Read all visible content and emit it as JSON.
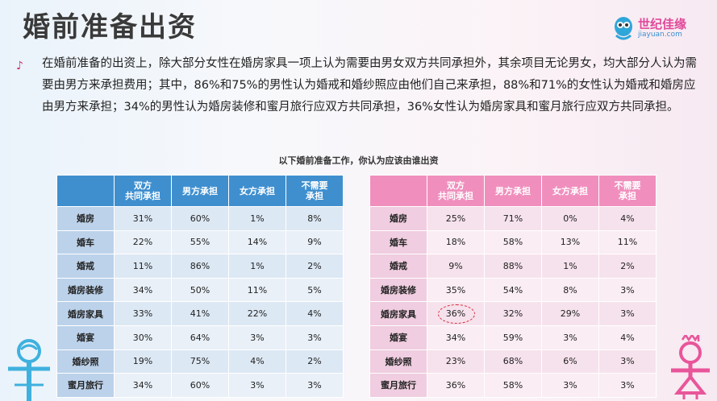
{
  "title": "婚前准备出资",
  "logo": {
    "cn": "世纪佳缘",
    "en": "jiayuan.com"
  },
  "bullet": "♪",
  "paragraph": "在婚前准备的出资上，除大部分女性在婚房家具一项上认为需要由男女双方共同承担外，其余项目无论男女，均大部分人认为需要由男方来承担费用；其中，86%和75%的男性认为婚戒和婚纱照应由他们自己来承担，88%和71%的女性认为婚戒和婚房应由男方来承担；34%的男性认为婚房装修和蜜月旅行应双方共同承担，36%女性认为婚房家具和蜜月旅行应双方共同承担。",
  "caption": "以下婚前准备工作，你认为应该由谁出资",
  "columns": [
    "",
    "双方\n共同承担",
    "男方承担",
    "女方承担",
    "不需要\n承担"
  ],
  "male_table": [
    [
      "婚房",
      "31%",
      "60%",
      "1%",
      "8%"
    ],
    [
      "婚车",
      "22%",
      "55%",
      "14%",
      "9%"
    ],
    [
      "婚戒",
      "11%",
      "86%",
      "1%",
      "2%"
    ],
    [
      "婚房装修",
      "34%",
      "50%",
      "11%",
      "5%"
    ],
    [
      "婚房家具",
      "33%",
      "41%",
      "22%",
      "4%"
    ],
    [
      "婚宴",
      "30%",
      "64%",
      "3%",
      "3%"
    ],
    [
      "婚纱照",
      "19%",
      "75%",
      "4%",
      "2%"
    ],
    [
      "蜜月旅行",
      "34%",
      "60%",
      "3%",
      "3%"
    ]
  ],
  "female_table": [
    [
      "婚房",
      "25%",
      "71%",
      "0%",
      "4%"
    ],
    [
      "婚车",
      "18%",
      "58%",
      "13%",
      "11%"
    ],
    [
      "婚戒",
      "9%",
      "88%",
      "1%",
      "2%"
    ],
    [
      "婚房装修",
      "35%",
      "54%",
      "8%",
      "3%"
    ],
    [
      "婚房家具",
      "36%",
      "32%",
      "29%",
      "3%"
    ],
    [
      "婚宴",
      "34%",
      "59%",
      "3%",
      "4%"
    ],
    [
      "婚纱照",
      "23%",
      "68%",
      "6%",
      "3%"
    ],
    [
      "蜜月旅行",
      "36%",
      "58%",
      "3%",
      "3%"
    ]
  ],
  "highlight": {
    "table": "female_table",
    "row": 4,
    "col": 1
  },
  "colors": {
    "male_header": "#3f8fcf",
    "female_header": "#f08fbd",
    "highlight": "#d82a3a"
  },
  "icons": [
    "logo-mascot-icon",
    "male-figure-icon",
    "female-figure-icon",
    "music-note-icon"
  ]
}
